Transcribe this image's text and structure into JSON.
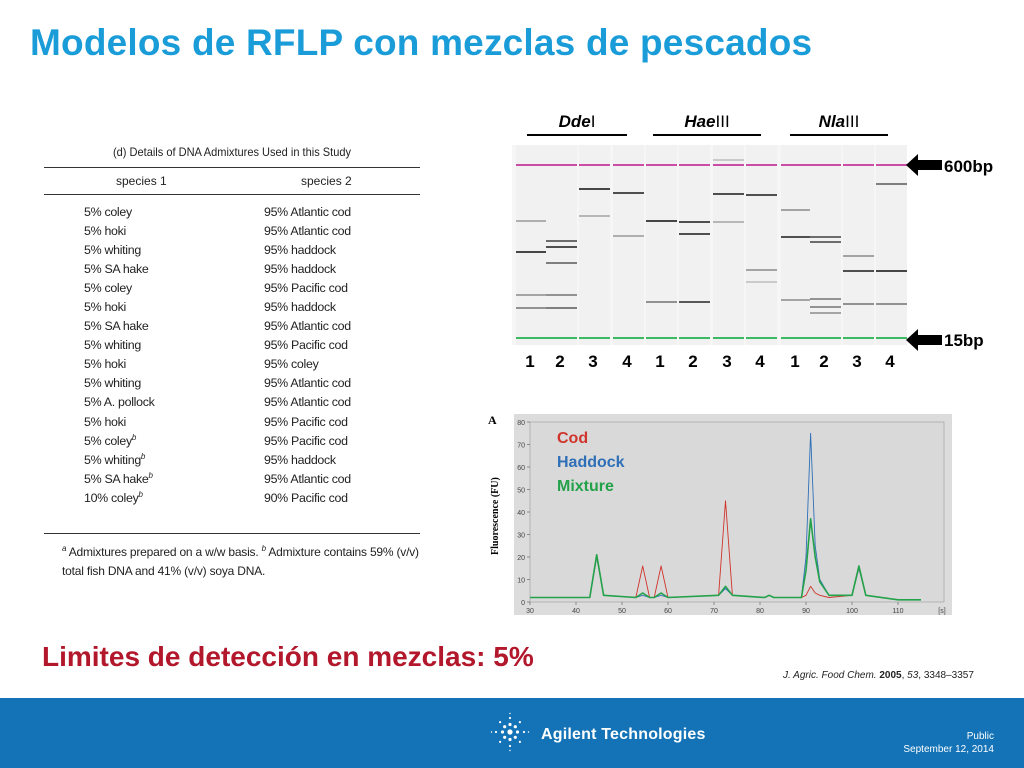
{
  "title": "Modelos de RFLP con mezclas de pescados",
  "table": {
    "caption": "(d) Details of DNA Admixtures Used in this Study",
    "col1": "species 1",
    "col2": "species 2",
    "rows": [
      [
        "5% coley",
        "95% Atlantic cod"
      ],
      [
        "5% hoki",
        "95% Atlantic cod"
      ],
      [
        "5% whiting",
        "95% haddock"
      ],
      [
        "5% SA hake",
        "95% haddock"
      ],
      [
        "5% coley",
        "95% Pacific cod"
      ],
      [
        "5% hoki",
        "95% haddock"
      ],
      [
        "5% SA hake",
        "95% Atlantic cod"
      ],
      [
        "5% whiting",
        "95% Pacific cod"
      ],
      [
        "5% hoki",
        "95% coley"
      ],
      [
        "5% whiting",
        "95% Atlantic cod"
      ],
      [
        "5% A. pollock",
        "95% Atlantic cod"
      ],
      [
        "5% hoki",
        "95% Pacific cod"
      ],
      [
        "5% coley",
        "95% Pacific cod",
        "b"
      ],
      [
        "5% whiting",
        "95% haddock",
        "b"
      ],
      [
        "5% SA hake",
        "95% Atlantic cod",
        "b"
      ],
      [
        "10% coley",
        "90% Pacific cod",
        "b"
      ]
    ],
    "footnote_a_mark": "a",
    "footnote_a": "Admixtures prepared on a w/w basis.",
    "footnote_b_mark": "b",
    "footnote_b": "Admixture contains 59% (v/v) total fish DNA and 41% (v/v) soya DNA."
  },
  "gel": {
    "enzymes": [
      {
        "italic": "Dde",
        "roman": "I"
      },
      {
        "italic": "Hae",
        "roman": "III"
      },
      {
        "italic": "Nla",
        "roman": "III"
      }
    ],
    "lane_numbers": [
      "1",
      "2",
      "3",
      "4",
      "1",
      "2",
      "3",
      "4",
      "1",
      "2",
      "3",
      "4"
    ],
    "upper_marker": "600bp",
    "lower_marker": "15bp",
    "upper_marker_color": "#c94da4",
    "lower_marker_color": "#3cba63"
  },
  "chart_data": {
    "type": "line",
    "panel_label": "A",
    "ylabel": "Fluorescence (FU)",
    "xunit": "[s]",
    "xlim": [
      30,
      120
    ],
    "ylim": [
      0,
      80
    ],
    "xticks": [
      30,
      40,
      50,
      60,
      70,
      80,
      90,
      100,
      110
    ],
    "yticks": [
      0,
      10,
      20,
      30,
      40,
      50,
      60,
      70,
      80
    ],
    "series": [
      {
        "name": "Cod",
        "color": "#d0342c",
        "x": [
          30,
          43,
          44.5,
          46,
          53,
          54.5,
          56,
          57,
          58.5,
          60,
          71,
          72.5,
          74,
          81,
          82,
          83,
          89,
          90,
          91,
          92,
          93,
          95,
          100,
          101.5,
          103,
          110,
          115
        ],
        "y": [
          2,
          2,
          20,
          3,
          2,
          16,
          2,
          2,
          16,
          2,
          3,
          45,
          3,
          2,
          3,
          2,
          2,
          3,
          7,
          4,
          3,
          2,
          3,
          15,
          3,
          1,
          1
        ]
      },
      {
        "name": "Haddock",
        "color": "#2e6fb7",
        "x": [
          30,
          43,
          44.5,
          46,
          53,
          54.5,
          56,
          57,
          58.5,
          60,
          71,
          72.5,
          74,
          81,
          82,
          83,
          89,
          90,
          91,
          92,
          93,
          95,
          100,
          101.5,
          103,
          110,
          115
        ],
        "y": [
          2,
          2,
          20,
          3,
          2,
          3,
          2,
          2,
          3,
          2,
          3,
          6,
          3,
          2,
          3,
          2,
          2,
          20,
          75,
          25,
          10,
          3,
          3,
          15,
          3,
          1,
          1
        ]
      },
      {
        "name": "Mixture",
        "color": "#23a249",
        "x": [
          30,
          43,
          44.5,
          46,
          53,
          54.5,
          56,
          57,
          58.5,
          60,
          71,
          72.5,
          74,
          81,
          82,
          83,
          89,
          90,
          91,
          92,
          93,
          95,
          100,
          101.5,
          103,
          110,
          115
        ],
        "y": [
          2,
          2,
          21,
          3,
          2,
          4,
          2,
          2,
          4,
          2,
          3,
          7,
          3,
          2,
          3,
          2,
          2,
          14,
          37,
          20,
          9,
          3,
          3,
          16,
          3,
          1,
          1
        ]
      }
    ]
  },
  "detection_limit": "Limites de detección en mezclas: 5%",
  "citation": {
    "journal": "J. Agric. Food Chem.",
    "year": "2005",
    "volume": "53",
    "pages": "3348–3357"
  },
  "footer": {
    "brand": "Agilent Technologies",
    "classification": "Public",
    "date": "September 12, 2014",
    "background": "#1473b6"
  }
}
